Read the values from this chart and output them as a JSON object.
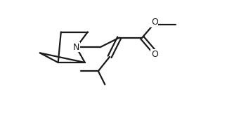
{
  "bg_color": "#ffffff",
  "line_color": "#1a1a1a",
  "lw": 1.6,
  "fig_width": 3.23,
  "fig_height": 1.78,
  "dpi": 100,
  "xlim": [
    0,
    10
  ],
  "ylim": [
    0,
    6.5
  ],
  "N_fontsize": 9,
  "O_fontsize": 9
}
